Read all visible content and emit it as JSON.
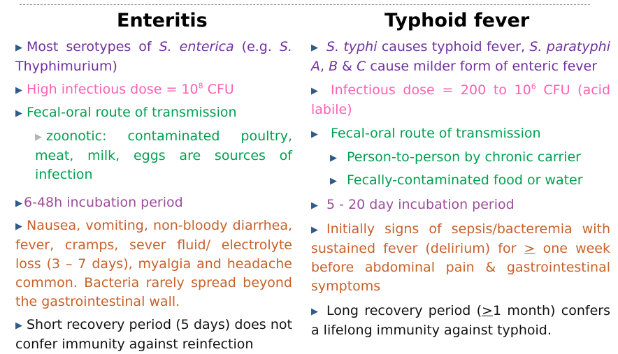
{
  "left": {
    "title": "Enteritis",
    "b1": {
      "p1": "Most serotypes of ",
      "i1": "S. enterica",
      "p2": " (e.g. ",
      "i2": "S.",
      "p3": " Thyphimurium)"
    },
    "b2": {
      "p1": "High infectious dose = 10",
      "sup": "8",
      "p2": " CFU"
    },
    "b3": "Fecal-oral route of transmission",
    "b3_sub": "zoonotic: contaminated  poultry, meat, milk, eggs are sources of infection",
    "b4": "6-48h incubation period",
    "b5": "Nausea, vomiting, non-bloody diarrhea, fever, cramps, sever fluid/ electrolyte loss (3 – 7 days), myalgia and headache common. Bacteria rarely spread beyond the gastrointestinal wall.",
    "b6": "Short recovery period (5 days) does not confer immunity against reinfection"
  },
  "right": {
    "title": "Typhoid fever",
    "b1": {
      "i1": "S. typhi",
      "p1": " causes typhoid fever, ",
      "i2": "S. paratyphi A",
      "p2": ", ",
      "i3": "B",
      "p3": " & ",
      "i4": "C",
      "p4": " cause milder form of enteric fever"
    },
    "b2": {
      "p1": "Infectious dose = 200 to 10",
      "sup": "6",
      "p2": " CFU (acid labile)"
    },
    "b3": "Fecal-oral route of transmission",
    "b3_sub1": "Person-to-person by chronic carrier",
    "b3_sub2": "Fecally-contaminated food or water",
    "b4": "5 - 20 day incubation period",
    "b5": {
      "p1": "Initially signs of sepsis/bacteremia with sustained fever (delirium) for ",
      "ge": ">",
      "p2": " one week before abdominal pain & gastrointestinal symptoms"
    },
    "b6": {
      "p1": "Long recovery period (",
      "ge": ">",
      "p2": "1 month) confers a lifelong immunity against typhoid."
    }
  },
  "colors": {
    "purple": "#7030a0",
    "pink": "#ff5fb4",
    "green": "#00a050",
    "mauve": "#9b4d9b",
    "orange": "#c8602a",
    "black": "#111111",
    "bullet": "#2e5b8a"
  },
  "icons": {
    "bullet": "triangle-right-icon",
    "sub_bullet": "triangle-right-icon"
  }
}
